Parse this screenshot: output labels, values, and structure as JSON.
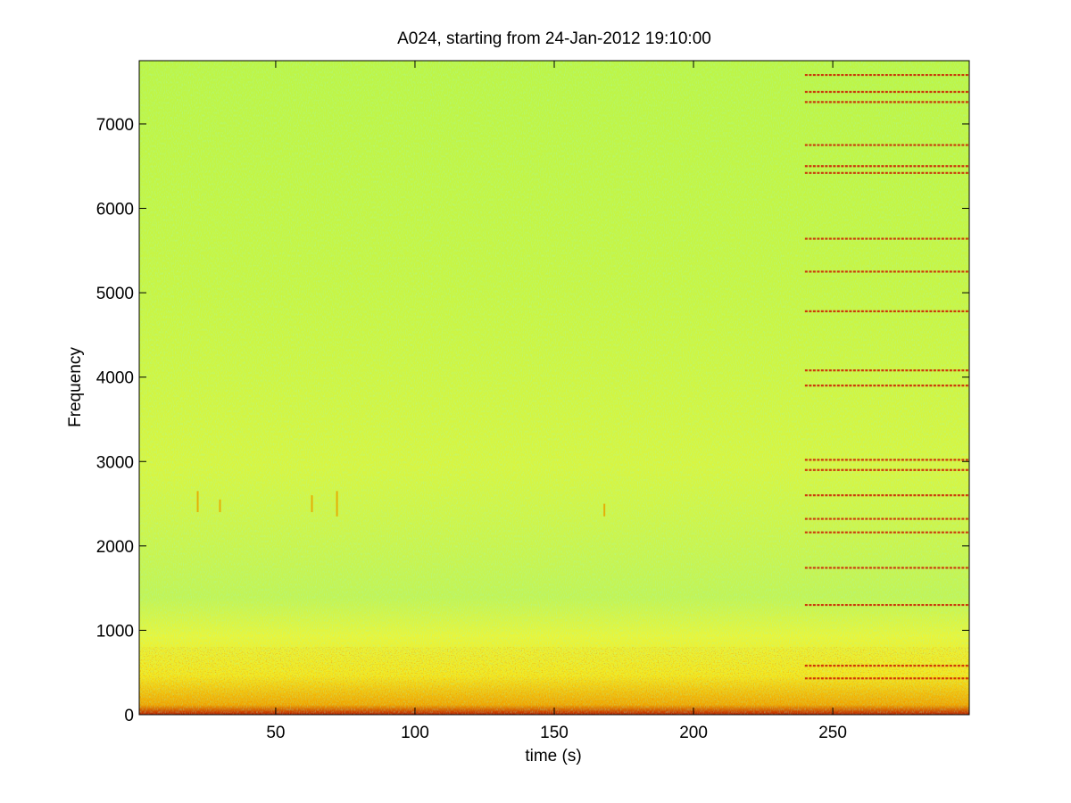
{
  "chart_data": {
    "type": "heatmap",
    "title": "A024, starting from 24-Jan-2012 19:10:00",
    "xlabel": "time (s)",
    "ylabel": "Frequency",
    "xlim": [
      1,
      299
    ],
    "ylim": [
      0,
      7750
    ],
    "x_ticks": [
      50,
      100,
      150,
      200,
      250
    ],
    "y_ticks": [
      0,
      1000,
      2000,
      3000,
      4000,
      5000,
      6000,
      7000
    ],
    "grid": false,
    "legend": "none",
    "colormap": {
      "low": "#8ff56a",
      "mid": "#f5f53d",
      "high": "#e8a800",
      "peak": "#cc1a00",
      "max": "#8c0000"
    },
    "background_band_hz": [
      0,
      800
    ],
    "tonal_lines": {
      "start_s": 240,
      "end_s": 299,
      "frequencies_hz": [
        430,
        580,
        1300,
        1740,
        2160,
        2320,
        2600,
        2900,
        3020,
        3900,
        4080,
        4780,
        5250,
        5640,
        6420,
        6500,
        6750,
        7260,
        7380,
        7580
      ]
    },
    "transients": [
      {
        "t": 22,
        "f_low": 2400,
        "f_high": 2650
      },
      {
        "t": 30,
        "f_low": 2400,
        "f_high": 2550
      },
      {
        "t": 63,
        "f_low": 2400,
        "f_high": 2600
      },
      {
        "t": 72,
        "f_low": 2350,
        "f_high": 2650
      },
      {
        "t": 168,
        "f_low": 2350,
        "f_high": 2500
      }
    ]
  }
}
